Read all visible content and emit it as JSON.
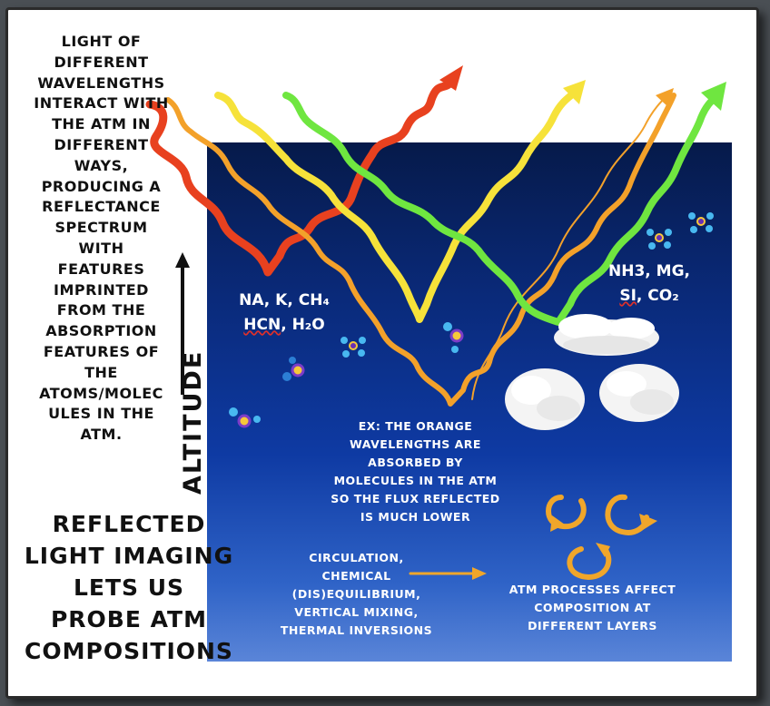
{
  "intro_text": "LIGHT OF DIFFERENT WAVELENGTHS INTERACT WITH THE ATM IN DIFFERENT WAYS, PRODUCING A REFLECTANCE SPECTRUM WITH FEATURES IMPRINTED FROM THE ABSORPTION FEATURES OF THE ATOMS/MOLECULES IN THE ATM.",
  "intro_lines": [
    "LIGHT OF",
    "DIFFERENT",
    "WAVELENGTHS",
    "INTERACT WITH",
    "THE ATM IN",
    "DIFFERENT",
    "WAYS,",
    "PRODUCING A",
    "REFLECTANCE",
    "SPECTRUM",
    "WITH",
    "FEATURES",
    "IMPRINTED",
    "FROM THE",
    "ABSORPTION",
    "FEATURES OF",
    "THE",
    "ATOMS/MOLEC",
    "ULES IN THE",
    "ATM."
  ],
  "axis_label": "ALTITUDE",
  "conclusion_lines": [
    "REFLECTED",
    "LIGHT IMAGING",
    "LETS US",
    "PROBE ATM",
    "COMPOSITIONS"
  ],
  "molecules_left": {
    "line1": "NA, K, CH₄",
    "line2_a": "HCN",
    "line2_b": ", H₂O"
  },
  "molecules_right": {
    "line1": "NH3, MG,",
    "line2_a": "SI",
    "line2_b": ", CO₂"
  },
  "example_lines": [
    "EX: THE ORANGE",
    "WAVELENGTHS ARE",
    "ABSORBED BY",
    "MOLECULES IN THE ATM",
    "SO THE FLUX REFLECTED",
    "IS MUCH LOWER"
  ],
  "processes_lines": [
    "CIRCULATION,",
    "CHEMICAL",
    "(DIS)EQUILIBRIUM,",
    "VERTICAL MIXING,",
    "THERMAL INVERSIONS"
  ],
  "atm_processes_lines": [
    "ATM PROCESSES AFFECT",
    "COMPOSITION AT",
    "DIFFERENT LAYERS"
  ],
  "colors": {
    "background": "#4a4f54",
    "sky_top": "#061a4a",
    "sky_bottom": "#5a85d8",
    "ray_red": "#e8411f",
    "ray_orange": "#f3a12a",
    "ray_yellow": "#f6e23a",
    "ray_green": "#6fe640",
    "circulation_arrows": "#f0a62a",
    "squiggle_underline": "#e0302a"
  }
}
